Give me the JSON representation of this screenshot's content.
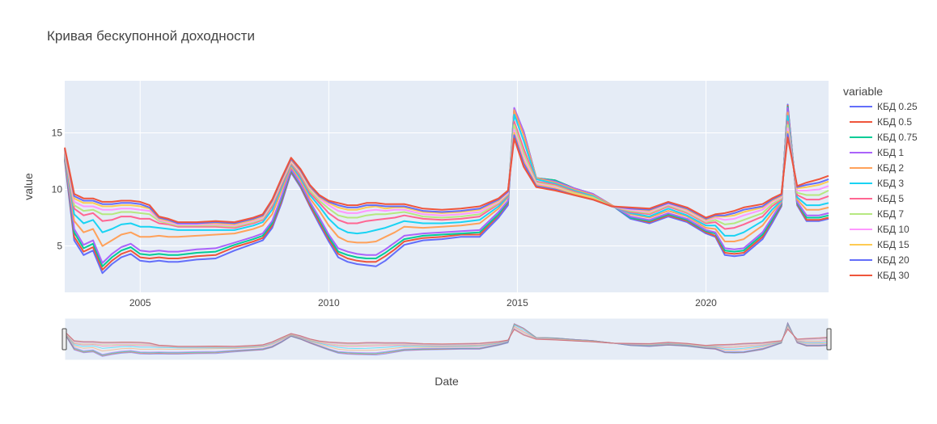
{
  "chart_data": {
    "type": "line",
    "title": "Кривая бескупонной доходности",
    "xlabel": "Date",
    "ylabel": "value",
    "xlim": [
      "2003-01-01",
      "2023-04-01"
    ],
    "ylim": [
      0.9,
      19.6
    ],
    "x_ticks": [
      "2005",
      "2010",
      "2015",
      "2020"
    ],
    "y_ticks": [
      "5",
      "10",
      "15"
    ],
    "legend_title": "variable",
    "legend_position": "right",
    "grid": true,
    "range_slider": true,
    "x": [
      "2003-01",
      "2003-04",
      "2003-07",
      "2003-10",
      "2004-01",
      "2004-04",
      "2004-07",
      "2004-10",
      "2005-01",
      "2005-04",
      "2005-07",
      "2005-10",
      "2006-01",
      "2006-07",
      "2007-01",
      "2007-07",
      "2008-01",
      "2008-04",
      "2008-07",
      "2008-10",
      "2009-01",
      "2009-04",
      "2009-07",
      "2009-10",
      "2010-01",
      "2010-04",
      "2010-07",
      "2010-10",
      "2011-01",
      "2011-04",
      "2011-07",
      "2011-10",
      "2012-01",
      "2012-07",
      "2013-01",
      "2013-07",
      "2014-01",
      "2014-07",
      "2014-10",
      "2014-12",
      "2015-03",
      "2015-07",
      "2016-01",
      "2016-07",
      "2017-01",
      "2017-07",
      "2018-01",
      "2018-07",
      "2019-01",
      "2019-07",
      "2020-01",
      "2020-04",
      "2020-07",
      "2020-10",
      "2021-01",
      "2021-07",
      "2021-10",
      "2022-01",
      "2022-03",
      "2022-06",
      "2022-09",
      "2023-01",
      "2023-04"
    ],
    "series": [
      {
        "name": "КБД 0.25",
        "color": "#636efa",
        "values": [
          12.6,
          5.5,
          4.2,
          4.6,
          2.6,
          3.4,
          4.0,
          4.3,
          3.7,
          3.6,
          3.7,
          3.6,
          3.6,
          3.8,
          3.9,
          4.6,
          5.2,
          5.5,
          6.6,
          8.8,
          11.5,
          10.2,
          8.5,
          6.9,
          5.4,
          4.0,
          3.6,
          3.4,
          3.3,
          3.2,
          3.7,
          4.4,
          5.1,
          5.5,
          5.6,
          5.8,
          5.8,
          7.5,
          8.6,
          16.8,
          15.0,
          10.9,
          10.8,
          10.1,
          9.6,
          8.6,
          7.4,
          7.0,
          7.6,
          7.1,
          6.1,
          5.8,
          4.2,
          4.1,
          4.2,
          5.6,
          7.0,
          8.5,
          17.5,
          8.6,
          7.2,
          7.2,
          7.4
        ]
      },
      {
        "name": "КБД 0.5",
        "color": "#ef553b",
        "values": [
          12.7,
          5.8,
          4.5,
          4.9,
          2.9,
          3.7,
          4.3,
          4.6,
          4.0,
          3.9,
          4.0,
          3.9,
          3.9,
          4.1,
          4.2,
          4.9,
          5.4,
          5.7,
          6.8,
          9.0,
          11.6,
          10.3,
          8.6,
          7.1,
          5.6,
          4.3,
          3.9,
          3.7,
          3.6,
          3.6,
          4.1,
          4.7,
          5.4,
          5.7,
          5.8,
          6.0,
          6.0,
          7.7,
          8.8,
          17.0,
          15.1,
          11.0,
          10.8,
          10.1,
          9.6,
          8.6,
          7.5,
          7.1,
          7.7,
          7.2,
          6.2,
          5.9,
          4.4,
          4.3,
          4.4,
          5.8,
          7.2,
          8.6,
          17.4,
          8.7,
          7.3,
          7.3,
          7.5
        ]
      },
      {
        "name": "КБД 0.75",
        "color": "#00cc96",
        "values": [
          12.8,
          6.2,
          4.8,
          5.2,
          3.2,
          4.0,
          4.6,
          4.9,
          4.3,
          4.2,
          4.3,
          4.2,
          4.2,
          4.4,
          4.5,
          5.1,
          5.6,
          5.9,
          7.0,
          9.2,
          11.7,
          10.4,
          8.8,
          7.3,
          5.8,
          4.5,
          4.2,
          4.0,
          3.9,
          3.9,
          4.4,
          5.0,
          5.6,
          5.9,
          6.0,
          6.1,
          6.2,
          7.8,
          8.9,
          17.1,
          15.1,
          11.0,
          10.8,
          10.1,
          9.6,
          8.6,
          7.5,
          7.2,
          7.8,
          7.3,
          6.3,
          6.1,
          4.6,
          4.5,
          4.6,
          6.0,
          7.3,
          8.7,
          17.3,
          8.8,
          7.5,
          7.5,
          7.7
        ]
      },
      {
        "name": "КБД 1",
        "color": "#ab63fa",
        "values": [
          12.9,
          6.5,
          5.1,
          5.5,
          3.5,
          4.3,
          4.9,
          5.2,
          4.6,
          4.5,
          4.6,
          4.5,
          4.5,
          4.7,
          4.8,
          5.3,
          5.8,
          6.1,
          7.2,
          9.4,
          11.8,
          10.5,
          8.9,
          7.5,
          6.0,
          4.8,
          4.5,
          4.3,
          4.2,
          4.2,
          4.7,
          5.3,
          5.9,
          6.1,
          6.2,
          6.3,
          6.4,
          8.0,
          9.0,
          17.2,
          15.1,
          11.0,
          10.7,
          10.1,
          9.6,
          8.6,
          7.6,
          7.3,
          7.9,
          7.4,
          6.4,
          6.2,
          4.8,
          4.7,
          4.8,
          6.2,
          7.5,
          8.8,
          17.2,
          8.9,
          7.7,
          7.7,
          7.9
        ]
      },
      {
        "name": "КБД 2",
        "color": "#ffa15a",
        "values": [
          13.0,
          7.2,
          6.2,
          6.5,
          5.0,
          5.5,
          6.0,
          6.2,
          5.8,
          5.8,
          5.9,
          5.8,
          5.8,
          5.9,
          6.0,
          6.1,
          6.5,
          6.8,
          7.8,
          9.9,
          12.0,
          10.8,
          9.2,
          8.1,
          6.8,
          5.8,
          5.4,
          5.3,
          5.3,
          5.4,
          5.8,
          6.2,
          6.7,
          6.6,
          6.7,
          6.8,
          7.0,
          8.3,
          9.3,
          17.0,
          14.8,
          11.0,
          10.6,
          10.0,
          9.5,
          8.6,
          7.8,
          7.5,
          8.1,
          7.6,
          6.6,
          6.5,
          5.4,
          5.4,
          5.6,
          6.8,
          7.9,
          8.9,
          16.8,
          9.1,
          8.2,
          8.2,
          8.4
        ]
      },
      {
        "name": "КБД 3",
        "color": "#19d3f3",
        "values": [
          13.1,
          7.8,
          7.0,
          7.3,
          6.2,
          6.5,
          6.9,
          7.0,
          6.7,
          6.7,
          6.6,
          6.5,
          6.4,
          6.4,
          6.4,
          6.4,
          6.8,
          7.1,
          8.2,
          10.2,
          12.2,
          11.0,
          9.5,
          8.5,
          7.4,
          6.6,
          6.2,
          6.1,
          6.2,
          6.4,
          6.6,
          6.9,
          7.2,
          7.0,
          7.0,
          7.1,
          7.3,
          8.5,
          9.4,
          16.6,
          14.3,
          10.9,
          10.5,
          9.9,
          9.4,
          8.5,
          7.9,
          7.6,
          8.3,
          7.7,
          6.8,
          6.8,
          5.9,
          5.9,
          6.2,
          7.2,
          8.2,
          9.0,
          16.5,
          9.3,
          8.6,
          8.6,
          8.8
        ]
      },
      {
        "name": "КБД 5",
        "color": "#ff6692",
        "values": [
          13.2,
          8.3,
          7.7,
          7.9,
          7.2,
          7.3,
          7.6,
          7.6,
          7.4,
          7.4,
          7.0,
          6.9,
          6.7,
          6.7,
          6.7,
          6.6,
          7.0,
          7.3,
          8.5,
          10.4,
          12.3,
          11.2,
          9.7,
          8.8,
          7.9,
          7.3,
          7.0,
          7.0,
          7.2,
          7.3,
          7.4,
          7.5,
          7.7,
          7.4,
          7.3,
          7.4,
          7.6,
          8.7,
          9.5,
          16.0,
          13.6,
          10.7,
          10.4,
          9.8,
          9.3,
          8.5,
          8.0,
          7.8,
          8.5,
          7.9,
          7.0,
          7.1,
          6.5,
          6.6,
          6.9,
          7.6,
          8.5,
          9.1,
          16.0,
          9.5,
          9.1,
          9.1,
          9.4
        ]
      },
      {
        "name": "КБД 7",
        "color": "#b6e880",
        "values": [
          13.3,
          8.6,
          8.1,
          8.2,
          7.8,
          7.8,
          8.0,
          8.0,
          7.9,
          7.8,
          7.2,
          7.0,
          6.8,
          6.8,
          6.8,
          6.7,
          7.1,
          7.4,
          8.7,
          10.6,
          12.4,
          11.4,
          9.9,
          9.0,
          8.3,
          7.7,
          7.5,
          7.5,
          7.7,
          7.8,
          7.8,
          7.9,
          8.0,
          7.6,
          7.5,
          7.6,
          7.8,
          8.8,
          9.6,
          15.7,
          13.2,
          10.6,
          10.3,
          9.7,
          9.3,
          8.5,
          8.1,
          7.9,
          8.6,
          8.0,
          7.1,
          7.3,
          6.9,
          7.0,
          7.3,
          7.9,
          8.7,
          9.2,
          15.7,
          9.7,
          9.5,
          9.5,
          9.9
        ]
      },
      {
        "name": "КБД 10",
        "color": "#ff97ff",
        "values": [
          13.4,
          8.9,
          8.5,
          8.5,
          8.2,
          8.2,
          8.3,
          8.3,
          8.2,
          8.1,
          7.3,
          7.1,
          6.9,
          6.9,
          6.9,
          6.8,
          7.2,
          7.5,
          8.8,
          10.7,
          12.5,
          11.5,
          10.1,
          9.2,
          8.6,
          8.1,
          7.9,
          7.9,
          8.1,
          8.2,
          8.1,
          8.2,
          8.2,
          7.8,
          7.7,
          7.8,
          8.0,
          8.9,
          9.7,
          15.3,
          12.8,
          10.5,
          10.2,
          9.6,
          9.2,
          8.5,
          8.2,
          8.0,
          8.7,
          8.1,
          7.2,
          7.5,
          7.3,
          7.4,
          7.7,
          8.2,
          8.9,
          9.3,
          15.4,
          9.9,
          9.9,
          10.0,
          10.3
        ]
      },
      {
        "name": "КБД 15",
        "color": "#fecb52",
        "values": [
          13.5,
          9.2,
          8.8,
          8.8,
          8.5,
          8.5,
          8.6,
          8.6,
          8.5,
          8.3,
          7.4,
          7.2,
          7.0,
          7.0,
          7.0,
          6.9,
          7.3,
          7.6,
          8.9,
          10.8,
          12.6,
          11.6,
          10.2,
          9.3,
          8.8,
          8.4,
          8.2,
          8.2,
          8.4,
          8.5,
          8.3,
          8.4,
          8.4,
          8.0,
          7.9,
          8.0,
          8.2,
          9.0,
          9.8,
          15.0,
          12.5,
          10.4,
          10.1,
          9.6,
          9.2,
          8.5,
          8.3,
          8.1,
          8.8,
          8.2,
          7.3,
          7.6,
          7.6,
          7.7,
          8.0,
          8.4,
          9.0,
          9.4,
          15.1,
          10.1,
          10.2,
          10.4,
          10.7
        ]
      },
      {
        "name": "КБД 20",
        "color": "#636efa",
        "values": [
          13.6,
          9.4,
          9.0,
          9.0,
          8.7,
          8.7,
          8.8,
          8.8,
          8.7,
          8.4,
          7.5,
          7.3,
          7.0,
          7.0,
          7.1,
          7.0,
          7.4,
          7.7,
          9.0,
          10.9,
          12.7,
          11.7,
          10.3,
          9.4,
          8.9,
          8.6,
          8.4,
          8.4,
          8.6,
          8.6,
          8.5,
          8.5,
          8.5,
          8.1,
          8.0,
          8.1,
          8.3,
          9.1,
          9.8,
          14.8,
          12.3,
          10.3,
          10.0,
          9.5,
          9.1,
          8.5,
          8.3,
          8.2,
          8.8,
          8.3,
          7.4,
          7.7,
          7.7,
          7.9,
          8.2,
          8.5,
          9.1,
          9.5,
          14.9,
          10.2,
          10.4,
          10.6,
          10.9
        ]
      },
      {
        "name": "КБД 30",
        "color": "#ef553b",
        "values": [
          13.7,
          9.6,
          9.2,
          9.2,
          8.9,
          8.9,
          9.0,
          9.0,
          8.9,
          8.6,
          7.6,
          7.4,
          7.1,
          7.1,
          7.2,
          7.1,
          7.5,
          7.8,
          9.1,
          11.0,
          12.8,
          11.8,
          10.4,
          9.5,
          9.0,
          8.8,
          8.6,
          8.6,
          8.8,
          8.8,
          8.7,
          8.7,
          8.7,
          8.3,
          8.2,
          8.3,
          8.5,
          9.2,
          9.9,
          14.5,
          12.0,
          10.2,
          9.9,
          9.5,
          9.1,
          8.5,
          8.4,
          8.3,
          8.9,
          8.4,
          7.5,
          7.8,
          7.9,
          8.1,
          8.4,
          8.7,
          9.2,
          9.6,
          14.6,
          10.3,
          10.6,
          10.9,
          11.2
        ]
      }
    ]
  }
}
